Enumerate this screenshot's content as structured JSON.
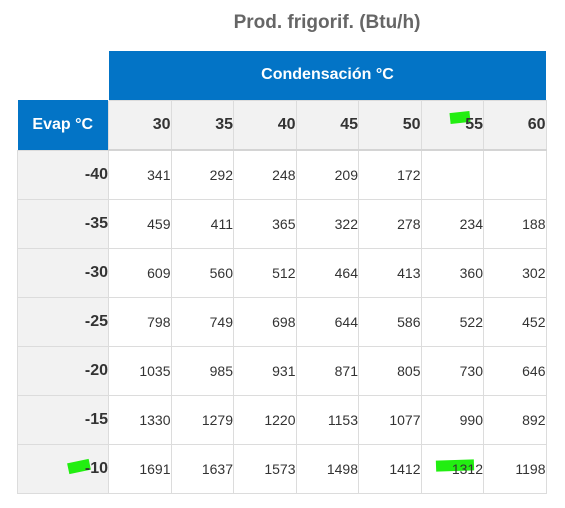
{
  "title": "Prod. frigorif. (Btu/h)",
  "condensation_header": "Condensación °C",
  "evap_header": "Evap °C",
  "columns": [
    "30",
    "35",
    "40",
    "45",
    "50",
    "55",
    "60"
  ],
  "rows": [
    {
      "evap": "-40",
      "values": [
        "341",
        "292",
        "248",
        "209",
        "172",
        "",
        ""
      ]
    },
    {
      "evap": "-35",
      "values": [
        "459",
        "411",
        "365",
        "322",
        "278",
        "234",
        "188"
      ]
    },
    {
      "evap": "-30",
      "values": [
        "609",
        "560",
        "512",
        "464",
        "413",
        "360",
        "302"
      ]
    },
    {
      "evap": "-25",
      "values": [
        "798",
        "749",
        "698",
        "644",
        "586",
        "522",
        "452"
      ]
    },
    {
      "evap": "-20",
      "values": [
        "1035",
        "985",
        "931",
        "871",
        "805",
        "730",
        "646"
      ]
    },
    {
      "evap": "-15",
      "values": [
        "1330",
        "1279",
        "1220",
        "1153",
        "1077",
        "990",
        "892"
      ]
    },
    {
      "evap": "-10",
      "values": [
        "1691",
        "1637",
        "1573",
        "1498",
        "1412",
        "1312",
        "1198"
      ]
    }
  ],
  "highlight_color": "#22ee11",
  "header_color": "#0374c6"
}
